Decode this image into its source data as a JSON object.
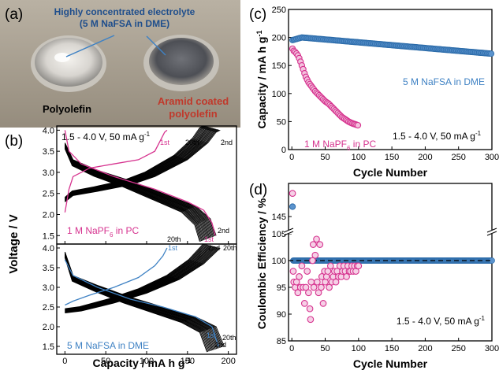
{
  "colors": {
    "blue": "#3f82c4",
    "magenta": "#d6338f",
    "black": "#000000",
    "photo_bg": "#a99f8f"
  },
  "panel_a": {
    "label": "(a)",
    "callout_line1": "Highly concentrated electrolyte",
    "callout_line2": "(5 M NaFSA in DME)",
    "left_dish": "Polyolefin",
    "right_dish_line1": "Aramid coated",
    "right_dish_line2": "polyolefin"
  },
  "panel_b": {
    "label": "(b)",
    "condition": "1.5 - 4.0 V, 50 mA g",
    "condition_sup": "-1",
    "ylabel": "Voltage  /  V",
    "xlabel": "Capacity  /  mA h g",
    "xlabel_sup": "-1",
    "xticks": [
      "0",
      "50",
      "100",
      "150",
      "200"
    ],
    "yticks_top": [
      "1.5",
      "2.0",
      "2.5",
      "3.0",
      "3.5",
      "4.0"
    ],
    "yticks_bottom": [
      "1.5",
      "2.0",
      "2.5",
      "3.0",
      "3.5",
      "4.0"
    ],
    "top_series_label": "1 M NaPF",
    "top_series_sub": "6",
    "top_series_suffix": " in PC",
    "bottom_series_label": "5 M NaFSA in DME",
    "top_annotations": {
      "first_charge": "1st",
      "twentieth_charge": "20th",
      "second_charge": "2nd",
      "twentieth_dis": "20th",
      "first_dis": "1st",
      "second_dis": "2nd"
    },
    "bottom_annotations": {
      "first_charge": "1st",
      "second_charge": "2nd",
      "twentieth_charge": "20th",
      "first_dis": "1st",
      "second_dis": "2nd",
      "twentieth_dis": "20th"
    }
  },
  "panel_c": {
    "label": "(c)",
    "ylabel": "Capacity  /  mA h g",
    "ylabel_sup": "-1",
    "xlabel": "Cycle Number",
    "condition": "1.5 - 4.0 V, 50 mA g",
    "condition_sup": "-1",
    "xticks": [
      "0",
      "50",
      "100",
      "150",
      "200",
      "250",
      "300"
    ],
    "yticks": [
      "0",
      "50",
      "100",
      "150",
      "200",
      "250"
    ],
    "blue_label": "5 M NaFSA in DME",
    "magenta_label": "1 M NaPF",
    "magenta_sub": "6",
    "magenta_suffix": " in PC"
  },
  "panel_d": {
    "label": "(d)",
    "ylabel": "Coulombic Efficiency / %",
    "xlabel": "Cycle Number",
    "condition": "1.5 - 4.0 V, 50 mA g",
    "condition_sup": "-1",
    "xticks": [
      "0",
      "50",
      "100",
      "150",
      "200",
      "250",
      "300"
    ],
    "yticks_lower": [
      "85",
      "90",
      "95",
      "100",
      "105"
    ],
    "yticks_upper": [
      "145"
    ]
  },
  "chart_data": [
    {
      "type": "line",
      "panel": "b-top",
      "xlabel": "Capacity / mA h g-1",
      "ylabel": "Voltage / V",
      "xlim": [
        -10,
        210
      ],
      "ylim": [
        1.3,
        4.1
      ],
      "series": [
        {
          "name": "1 M NaPF6 in PC",
          "cycle": "1st",
          "charge": [
            [
              0,
              2.05
            ],
            [
              5,
              2.6
            ],
            [
              10,
              2.9
            ],
            [
              30,
              3.1
            ],
            [
              60,
              3.2
            ],
            [
              90,
              3.3
            ],
            [
              110,
              3.5
            ],
            [
              118,
              3.8
            ],
            [
              122,
              3.95
            ],
            [
              125,
              4.0
            ]
          ],
          "discharge": [
            [
              0,
              4.0
            ],
            [
              5,
              3.5
            ],
            [
              20,
              3.2
            ],
            [
              60,
              2.9
            ],
            [
              110,
              2.6
            ],
            [
              150,
              2.3
            ],
            [
              170,
              2.1
            ],
            [
              180,
              1.8
            ],
            [
              184,
              1.5
            ]
          ]
        },
        {
          "name": "1 M NaPF6 in PC",
          "cycle": "2nd-20th",
          "charge": [
            [
              0,
              2.3
            ],
            [
              10,
              2.45
            ],
            [
              40,
              2.55
            ],
            [
              80,
              2.7
            ],
            [
              110,
              2.9
            ],
            [
              150,
              3.3
            ],
            [
              175,
              3.7
            ],
            [
              185,
              3.95
            ],
            [
              190,
              4.0
            ]
          ],
          "discharge": [
            [
              0,
              3.7
            ],
            [
              10,
              3.3
            ],
            [
              40,
              3.05
            ],
            [
              80,
              2.8
            ],
            [
              120,
              2.5
            ],
            [
              160,
              2.2
            ],
            [
              178,
              1.9
            ],
            [
              185,
              1.5
            ]
          ]
        }
      ]
    },
    {
      "type": "line",
      "panel": "b-bottom",
      "xlabel": "Capacity / mA h g-1",
      "ylabel": "Voltage / V",
      "xlim": [
        -10,
        210
      ],
      "ylim": [
        1.3,
        4.1
      ],
      "series": [
        {
          "name": "5 M NaFSA in DME",
          "cycle": "1st",
          "charge": [
            [
              0,
              2.55
            ],
            [
              10,
              2.65
            ],
            [
              30,
              2.8
            ],
            [
              60,
              3.0
            ],
            [
              90,
              3.25
            ],
            [
              110,
              3.55
            ],
            [
              120,
              3.8
            ],
            [
              125,
              4.0
            ]
          ],
          "discharge": [
            [
              0,
              3.7
            ],
            [
              10,
              3.3
            ],
            [
              40,
              3.0
            ],
            [
              80,
              2.7
            ],
            [
              120,
              2.5
            ],
            [
              160,
              2.25
            ],
            [
              180,
              2.0
            ],
            [
              188,
              1.5
            ]
          ]
        },
        {
          "name": "5 M NaFSA in DME",
          "cycle": "2nd-20th",
          "charge": [
            [
              0,
              2.35
            ],
            [
              20,
              2.4
            ],
            [
              60,
              2.6
            ],
            [
              100,
              2.85
            ],
            [
              140,
              3.2
            ],
            [
              170,
              3.6
            ],
            [
              185,
              3.9
            ],
            [
              190,
              4.0
            ]
          ],
          "discharge": [
            [
              0,
              3.9
            ],
            [
              10,
              3.3
            ],
            [
              40,
              3.05
            ],
            [
              80,
              2.75
            ],
            [
              120,
              2.5
            ],
            [
              160,
              2.25
            ],
            [
              185,
              2.0
            ],
            [
              195,
              1.5
            ]
          ]
        }
      ]
    },
    {
      "type": "scatter",
      "panel": "c",
      "xlabel": "Cycle Number",
      "ylabel": "Capacity / mA h g-1",
      "xlim": [
        -5,
        300
      ],
      "ylim": [
        0,
        250
      ],
      "series": [
        {
          "name": "5 M NaFSA in DME",
          "x_range": [
            1,
            300
          ],
          "y_start": 195,
          "y_peak": 200,
          "y_end": 171
        },
        {
          "name": "1 M NaPF6 in PC",
          "points": [
            [
              1,
              180
            ],
            [
              3,
              176
            ],
            [
              5,
              174
            ],
            [
              8,
              170
            ],
            [
              10,
              166
            ],
            [
              12,
              160
            ],
            [
              15,
              150
            ],
            [
              18,
              140
            ],
            [
              20,
              132
            ],
            [
              25,
              120
            ],
            [
              30,
              112
            ],
            [
              35,
              104
            ],
            [
              40,
              98
            ],
            [
              45,
              92
            ],
            [
              50,
              86
            ],
            [
              55,
              82
            ],
            [
              60,
              76
            ],
            [
              65,
              70
            ],
            [
              70,
              64
            ],
            [
              75,
              58
            ],
            [
              80,
              54
            ],
            [
              85,
              50
            ],
            [
              90,
              47
            ],
            [
              95,
              45
            ],
            [
              100,
              43
            ]
          ]
        }
      ]
    },
    {
      "type": "scatter",
      "panel": "d",
      "xlabel": "Cycle Number",
      "ylabel": "Coulombic Efficiency / %",
      "xlim": [
        -5,
        300
      ],
      "ylim_lower": [
        85,
        105
      ],
      "ylim_upper": [
        143,
        150
      ],
      "reference_line": 100,
      "series": [
        {
          "name": "5 M NaFSA in DME",
          "first_cycle": 146.5,
          "steady": 100
        },
        {
          "name": "1 M NaPF6 in PC",
          "points": [
            [
              1,
              148.5
            ],
            [
              2,
              98
            ],
            [
              3,
              96
            ],
            [
              5,
              95
            ],
            [
              7,
              96
            ],
            [
              9,
              94
            ],
            [
              11,
              97
            ],
            [
              13,
              95
            ],
            [
              15,
              99
            ],
            [
              17,
              95
            ],
            [
              19,
              92
            ],
            [
              21,
              95
            ],
            [
              23,
              98
            ],
            [
              25,
              94
            ],
            [
              27,
              91
            ],
            [
              28,
              89
            ],
            [
              29,
              96
            ],
            [
              31,
              100
            ],
            [
              32,
              103
            ],
            [
              33,
              95
            ],
            [
              35,
              101
            ],
            [
              37,
              104
            ],
            [
              38,
              96
            ],
            [
              40,
              94
            ],
            [
              42,
              103
            ],
            [
              44,
              95
            ],
            [
              45,
              97
            ],
            [
              47,
              92
            ],
            [
              49,
              98
            ],
            [
              50,
              96
            ],
            [
              52,
              97
            ],
            [
              54,
              98
            ],
            [
              56,
              95
            ],
            [
              58,
              99
            ],
            [
              60,
              96
            ],
            [
              62,
              97
            ],
            [
              64,
              98
            ],
            [
              66,
              96
            ],
            [
              68,
              98
            ],
            [
              70,
              97
            ],
            [
              72,
              99
            ],
            [
              74,
              97
            ],
            [
              76,
              98
            ],
            [
              78,
              99
            ],
            [
              80,
              98
            ],
            [
              82,
              97
            ],
            [
              84,
              99
            ],
            [
              86,
              98
            ],
            [
              88,
              98
            ],
            [
              90,
              99
            ],
            [
              92,
              98
            ],
            [
              94,
              99
            ],
            [
              96,
              98
            ],
            [
              98,
              99
            ],
            [
              100,
              99
            ]
          ]
        }
      ]
    }
  ]
}
